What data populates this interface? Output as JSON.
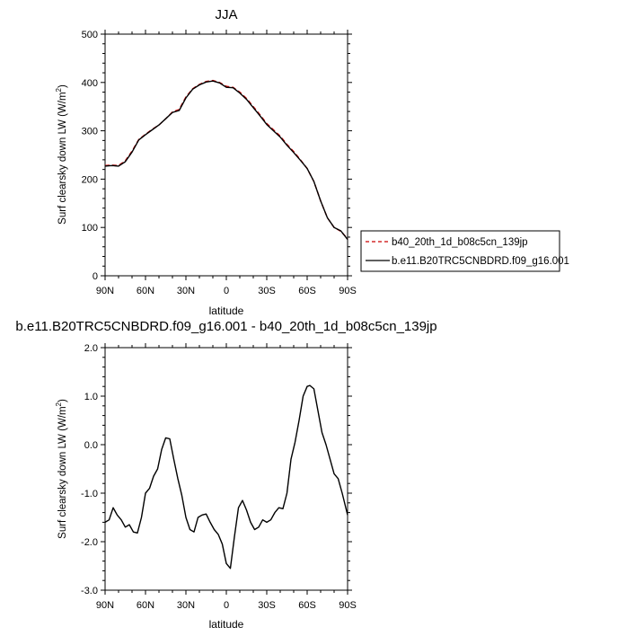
{
  "colors": {
    "model_a": "#cc0000",
    "model_b": "#000000",
    "axis": "#000000"
  },
  "chart_data": [
    {
      "type": "line",
      "title": "JJA",
      "xlabel": "",
      "ylabel": "Surf clearsky down LW (W/m",
      "ylabel_sup": "2",
      "ylabel_end": ")",
      "xlim": [
        90,
        -90
      ],
      "ylim": [
        0,
        500
      ],
      "xticks": [
        90,
        60,
        30,
        0,
        -30,
        -60,
        -90
      ],
      "xtick_labels": [
        "90N",
        "60N",
        "30N",
        "0",
        "30S",
        "60S",
        "90S"
      ],
      "yticks": [
        0,
        100,
        200,
        300,
        400,
        500
      ],
      "ytick_labels": [
        "0",
        "100",
        "200",
        "300",
        "400",
        "500"
      ],
      "legend": {
        "placement": "right",
        "entries": [
          "b40_20th_1d_b08c5cn_139jp",
          "b.e11.B20TRC5CNBDRD.f09_g16.001"
        ]
      },
      "series": [
        {
          "name": "b40_20th_1d_b08c5cn_139jp",
          "style": "dashed",
          "x": [
            90,
            85,
            80,
            75,
            70,
            65,
            60,
            55,
            50,
            45,
            40,
            35,
            30,
            25,
            20,
            15,
            10,
            5,
            0,
            -5,
            -10,
            -15,
            -20,
            -25,
            -30,
            -35,
            -40,
            -45,
            -50,
            -55,
            -60,
            -65,
            -70,
            -75,
            -80,
            -85,
            -90
          ],
          "y": [
            228,
            229,
            228,
            238,
            258,
            282,
            293,
            303,
            312,
            325,
            339,
            344,
            370,
            387,
            396,
            402,
            404,
            400,
            392,
            390,
            380,
            367,
            350,
            333,
            315,
            302,
            289,
            272,
            257,
            240,
            222,
            195,
            155,
            120,
            100,
            92,
            77
          ]
        },
        {
          "name": "b.e11.B20TRC5CNBDRD.f09_g16.001",
          "style": "solid",
          "x": [
            90,
            85,
            80,
            75,
            70,
            65,
            60,
            55,
            50,
            45,
            40,
            35,
            30,
            25,
            20,
            15,
            10,
            5,
            0,
            -5,
            -10,
            -15,
            -20,
            -25,
            -30,
            -35,
            -40,
            -45,
            -50,
            -55,
            -60,
            -65,
            -70,
            -75,
            -80,
            -85,
            -90
          ],
          "y": [
            227,
            228,
            227,
            236,
            256,
            281,
            292,
            302,
            312,
            325,
            338,
            342,
            368,
            386,
            395,
            401,
            403,
            399,
            390,
            389,
            378,
            365,
            348,
            331,
            313,
            300,
            287,
            270,
            255,
            239,
            222,
            195,
            155,
            120,
            100,
            93,
            75
          ]
        }
      ]
    },
    {
      "type": "line",
      "title": "b.e11.B20TRC5CNBDRD.f09_g16.001 - b40_20th_1d_b08c5cn_139jp",
      "xlabel": "latitude",
      "ylabel": "Surf clearsky down LW (W/m",
      "ylabel_sup": "2",
      "ylabel_end": ")",
      "xlim": [
        90,
        -90
      ],
      "ylim": [
        -3.0,
        2.0
      ],
      "xticks": [
        90,
        60,
        30,
        0,
        -30,
        -60,
        -90
      ],
      "xtick_labels": [
        "90N",
        "60N",
        "30N",
        "0",
        "30S",
        "60S",
        "90S"
      ],
      "yticks": [
        -3.0,
        -2.0,
        -1.0,
        0.0,
        1.0,
        2.0
      ],
      "ytick_labels": [
        "-3.0",
        "-2.0",
        "-1.0",
        "0.0",
        "1.0",
        "2.0"
      ],
      "series": [
        {
          "name": "",
          "style": "solid",
          "x": [
            90,
            87,
            84,
            81,
            78,
            75,
            72,
            69,
            66,
            63,
            60,
            57,
            54,
            51,
            48,
            45,
            42,
            39,
            36,
            33,
            30,
            27,
            24,
            21,
            18,
            15,
            12,
            9,
            6,
            3,
            0,
            -3,
            -6,
            -9,
            -12,
            -15,
            -18,
            -21,
            -24,
            -27,
            -30,
            -33,
            -36,
            -39,
            -42,
            -45,
            -48,
            -51,
            -54,
            -57,
            -60,
            -62,
            -65,
            -68,
            -71,
            -74,
            -77,
            -80,
            -83,
            -86,
            -90
          ],
          "y": [
            -1.6,
            -1.55,
            -1.3,
            -1.45,
            -1.55,
            -1.7,
            -1.65,
            -1.8,
            -1.82,
            -1.5,
            -1.0,
            -0.9,
            -0.65,
            -0.5,
            -0.1,
            0.14,
            0.12,
            -0.3,
            -0.7,
            -1.05,
            -1.5,
            -1.75,
            -1.8,
            -1.5,
            -1.45,
            -1.43,
            -1.6,
            -1.75,
            -1.85,
            -2.05,
            -2.45,
            -2.55,
            -1.9,
            -1.3,
            -1.15,
            -1.35,
            -1.6,
            -1.75,
            -1.7,
            -1.55,
            -1.6,
            -1.55,
            -1.4,
            -1.3,
            -1.32,
            -1.0,
            -0.3,
            0.05,
            0.5,
            1.0,
            1.2,
            1.22,
            1.15,
            0.7,
            0.25,
            0.0,
            -0.3,
            -0.6,
            -0.7,
            -1.0,
            -1.45
          ]
        }
      ]
    }
  ]
}
